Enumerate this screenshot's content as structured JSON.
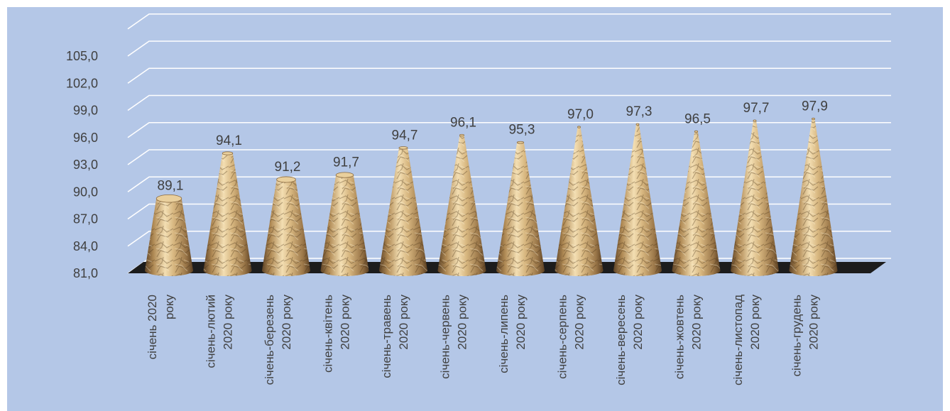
{
  "chart_data": {
    "type": "bar",
    "title": "",
    "xlabel": "",
    "ylabel": "",
    "ylim": [
      81.0,
      108.0
    ],
    "yticks": [
      "81,0",
      "84,0",
      "87,0",
      "90,0",
      "93,0",
      "96,0",
      "99,0",
      "102,0",
      "105,0"
    ],
    "grid": true,
    "bar_shape": "cone",
    "categories": [
      [
        "січень 2020",
        "року"
      ],
      [
        "січень-лютий",
        "2020 року"
      ],
      [
        "січень-березень",
        "2020 року"
      ],
      [
        "січень-квітень",
        "2020 року"
      ],
      [
        "січень-травень",
        "2020 року"
      ],
      [
        "січень-червень",
        "2020 року"
      ],
      [
        "січень-липень",
        "2020 року"
      ],
      [
        "січень-серпень",
        "2020 року"
      ],
      [
        "січень-вересень",
        "2020 року"
      ],
      [
        "січень-жовтень",
        "2020 року"
      ],
      [
        "січень-листопад",
        "2020 року"
      ],
      [
        "січень-грудень",
        "2020 року"
      ]
    ],
    "values": [
      89.1,
      94.1,
      91.2,
      91.7,
      94.7,
      96.1,
      95.3,
      97.0,
      97.3,
      96.5,
      97.7,
      97.9
    ],
    "value_labels": [
      "89,1",
      "94,1",
      "91,2",
      "91,7",
      "94,7",
      "96,1",
      "95,3",
      "97,0",
      "97,3",
      "96,5",
      "97,7",
      "97,9"
    ],
    "colors": {
      "plot_background": "#b4c7e7",
      "gridline": "#ffffff",
      "floor": "#1c1c1c",
      "cone_light": "#f2dcae",
      "cone_mid": "#c9a56d",
      "cone_dark": "#6e5130",
      "text": "#404040"
    }
  }
}
